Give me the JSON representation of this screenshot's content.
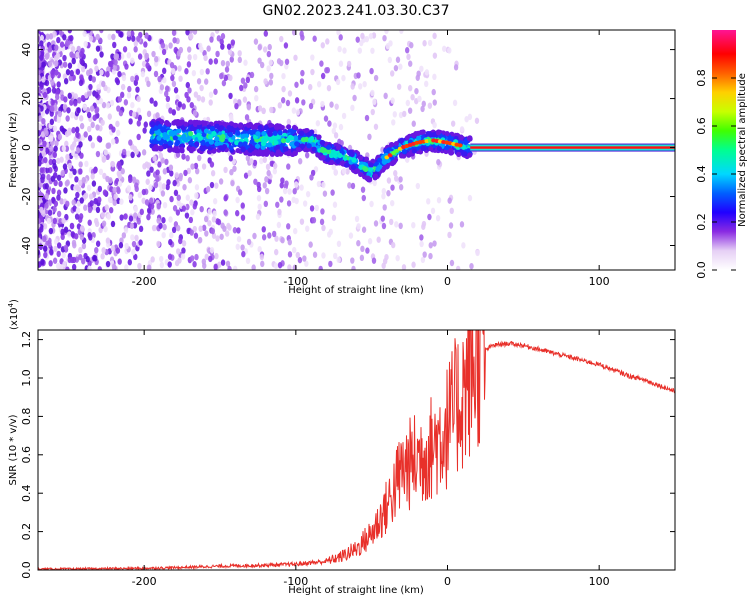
{
  "title": "GN02.2023.241.03.30.C37",
  "chart_data": [
    {
      "type": "heatmap",
      "xlabel": "Height of straight line (km)",
      "ylabel": "Frequency (Hz)",
      "xlim": [
        -270,
        150
      ],
      "ylim": [
        -50,
        48
      ],
      "xticks": [
        -200,
        -100,
        0,
        100
      ],
      "yticks": [
        -40,
        -20,
        0,
        20,
        40
      ],
      "colorbar": {
        "label": "Normalized spectral amplitude",
        "range": [
          0,
          1
        ],
        "ticks": [
          "0.0",
          "0.2",
          "0.4",
          "0.6",
          "0.8"
        ]
      },
      "ridge": [
        {
          "x": -190,
          "f": 5
        },
        {
          "x": -150,
          "f": 4
        },
        {
          "x": -110,
          "f": 3
        },
        {
          "x": -90,
          "f": 3
        },
        {
          "x": -80,
          "f": -2
        },
        {
          "x": -70,
          "f": -3
        },
        {
          "x": -60,
          "f": -6
        },
        {
          "x": -50,
          "f": -10
        },
        {
          "x": -40,
          "f": -4
        },
        {
          "x": -30,
          "f": 0
        },
        {
          "x": -20,
          "f": 2
        },
        {
          "x": -10,
          "f": 3
        },
        {
          "x": 0,
          "f": 2
        },
        {
          "x": 15,
          "f": 0
        },
        {
          "x": 150,
          "f": 0
        }
      ]
    },
    {
      "type": "line",
      "xlabel": "Height of straight line (km)",
      "ylabel": "SNR (10 * v/v)",
      "y_multiplier": "(x10",
      "y_multiplier_exp": "4",
      "xlim": [
        -270,
        150
      ],
      "ylim": [
        0,
        1.25
      ],
      "xticks": [
        -200,
        -100,
        0,
        100
      ],
      "yticks": [
        "0.0",
        "0.2",
        "0.4",
        "0.6",
        "0.8",
        "1.0",
        "1.2"
      ],
      "series": [
        {
          "color": "#e8302a",
          "x": [
            -270,
            -240,
            -210,
            -180,
            -150,
            -120,
            -100,
            -80,
            -70,
            -60,
            -50,
            -40,
            -30,
            -20,
            -10,
            0,
            10,
            20,
            30,
            40,
            50,
            60,
            70,
            80,
            90,
            100,
            110,
            120,
            130,
            140,
            150
          ],
          "y": [
            0.005,
            0.006,
            0.008,
            0.012,
            0.02,
            0.025,
            0.03,
            0.045,
            0.07,
            0.11,
            0.19,
            0.33,
            0.52,
            0.58,
            0.64,
            0.75,
            0.92,
            1.12,
            1.17,
            1.18,
            1.17,
            1.15,
            1.13,
            1.11,
            1.09,
            1.07,
            1.04,
            1.01,
            0.99,
            0.96,
            0.93
          ]
        }
      ]
    }
  ]
}
